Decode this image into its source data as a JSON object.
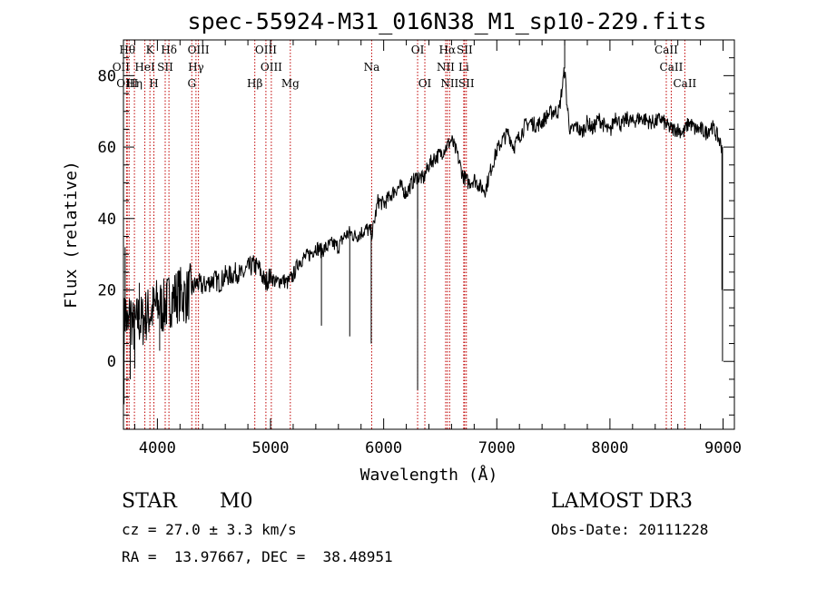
{
  "chart_data": {
    "type": "line",
    "title": "spec-55924-M31_016N38_M1_sp10-229.fits",
    "xlabel": "Wavelength (Å)",
    "ylabel": "Flux (relative)",
    "xlim": [
      3700,
      9100
    ],
    "ylim": [
      -19,
      90
    ],
    "xticks": [
      4000,
      5000,
      6000,
      7000,
      8000,
      9000
    ],
    "yticks": [
      0,
      20,
      40,
      60,
      80
    ],
    "series": [
      {
        "name": "flux",
        "x": [
          3705,
          3720,
          3740,
          3760,
          3780,
          3800,
          3830,
          3860,
          3900,
          3950,
          4000,
          4050,
          4100,
          4150,
          4200,
          4250,
          4300,
          4350,
          4400,
          4450,
          4500,
          4550,
          4600,
          4650,
          4700,
          4750,
          4800,
          4850,
          4900,
          4950,
          5000,
          5050,
          5100,
          5150,
          5200,
          5250,
          5300,
          5350,
          5400,
          5450,
          5500,
          5550,
          5600,
          5650,
          5700,
          5750,
          5800,
          5850,
          5900,
          5950,
          6000,
          6050,
          6100,
          6150,
          6200,
          6250,
          6300,
          6350,
          6400,
          6450,
          6500,
          6550,
          6600,
          6650,
          6700,
          6750,
          6800,
          6850,
          6900,
          6950,
          7000,
          7050,
          7100,
          7150,
          7200,
          7250,
          7300,
          7350,
          7400,
          7450,
          7500,
          7550,
          7600,
          7620,
          7650,
          7700,
          7750,
          7800,
          7850,
          7900,
          7950,
          8000,
          8050,
          8100,
          8150,
          8200,
          8250,
          8300,
          8350,
          8400,
          8450,
          8500,
          8550,
          8600,
          8650,
          8700,
          8750,
          8800,
          8850,
          8900,
          8950,
          8990
        ],
        "y": [
          10,
          14,
          8,
          15,
          10,
          9,
          12,
          11,
          13,
          14,
          16,
          15,
          17,
          18,
          19,
          18,
          20,
          22,
          21,
          22,
          23,
          22,
          24,
          24,
          25,
          24,
          26,
          27,
          26,
          22,
          24,
          22,
          23,
          22,
          24,
          28,
          29,
          30,
          32,
          31,
          32,
          33,
          32,
          35,
          36,
          35,
          36,
          37,
          36,
          45,
          44,
          46,
          48,
          49,
          47,
          50,
          52,
          51,
          55,
          57,
          58,
          60,
          62,
          58,
          52,
          50,
          51,
          49,
          48,
          54,
          59,
          62,
          64,
          60,
          63,
          66,
          67,
          66,
          67,
          69,
          70,
          70,
          82,
          72,
          64,
          66,
          64,
          67,
          65,
          68,
          66,
          64,
          69,
          66,
          68,
          67,
          68,
          68,
          67,
          67,
          68,
          66,
          65,
          65,
          64,
          67,
          65,
          65,
          64,
          66,
          63,
          60
        ],
        "artifacts": [
          {
            "x": 3705,
            "y": -12
          },
          {
            "x": 3715,
            "y": 32
          },
          {
            "x": 3760,
            "y": -5
          },
          {
            "x": 3800,
            "y": -2
          },
          {
            "x": 3840,
            "y": 22
          },
          {
            "x": 4020,
            "y": 3
          },
          {
            "x": 4080,
            "y": 22
          },
          {
            "x": 5450,
            "y": 10
          },
          {
            "x": 5700,
            "y": 7
          },
          {
            "x": 5890,
            "y": 5
          },
          {
            "x": 6300,
            "y": -8
          },
          {
            "x": 6300,
            "y": 40
          },
          {
            "x": 7600,
            "y": 90
          },
          {
            "x": 8990,
            "y": 20
          },
          {
            "x": 8995,
            "y": 0
          }
        ]
      }
    ],
    "lines": [
      {
        "x": 3734,
        "label": "Hθ"
      },
      {
        "x": 3727,
        "label": "OII"
      },
      {
        "x": 3750,
        "label": "OIII"
      },
      {
        "x": 3797,
        "label": "Hη"
      },
      {
        "x": 3889,
        "label": "HeI"
      },
      {
        "x": 3934,
        "label": "K"
      },
      {
        "x": 3969,
        "label": "H"
      },
      {
        "x": 4069,
        "label": "SII"
      },
      {
        "x": 4102,
        "label": "Hδ"
      },
      {
        "x": 4304,
        "label": "G"
      },
      {
        "x": 4341,
        "label": "Hγ"
      },
      {
        "x": 4363,
        "label": "OIII"
      },
      {
        "x": 4861,
        "label": "Hβ"
      },
      {
        "x": 4959,
        "label": "OIII"
      },
      {
        "x": 5007,
        "label": "OIII"
      },
      {
        "x": 5175,
        "label": "Mg"
      },
      {
        "x": 5894,
        "label": "Na"
      },
      {
        "x": 6300,
        "label": "OI"
      },
      {
        "x": 6364,
        "label": "OI"
      },
      {
        "x": 6548,
        "label": "NII"
      },
      {
        "x": 6563,
        "label": "Hα"
      },
      {
        "x": 6583,
        "label": "NII"
      },
      {
        "x": 6708,
        "label": "Li"
      },
      {
        "x": 6716,
        "label": "SII"
      },
      {
        "x": 6731,
        "label": "SII"
      },
      {
        "x": 8498,
        "label": "CaII"
      },
      {
        "x": 8542,
        "label": "CaII"
      },
      {
        "x": 8662,
        "label": "CaII"
      }
    ]
  },
  "info": {
    "class": "STAR",
    "subclass": "M0",
    "survey": "LAMOST DR3",
    "cz": "cz = 27.0 ± 3.3 km/s",
    "obs_date": "Obs-Date: 20111228",
    "coords": "RA =  13.97667, DEC =  38.48951"
  },
  "colors": {
    "line_marker": "#c00000",
    "spectrum": "#000000"
  }
}
